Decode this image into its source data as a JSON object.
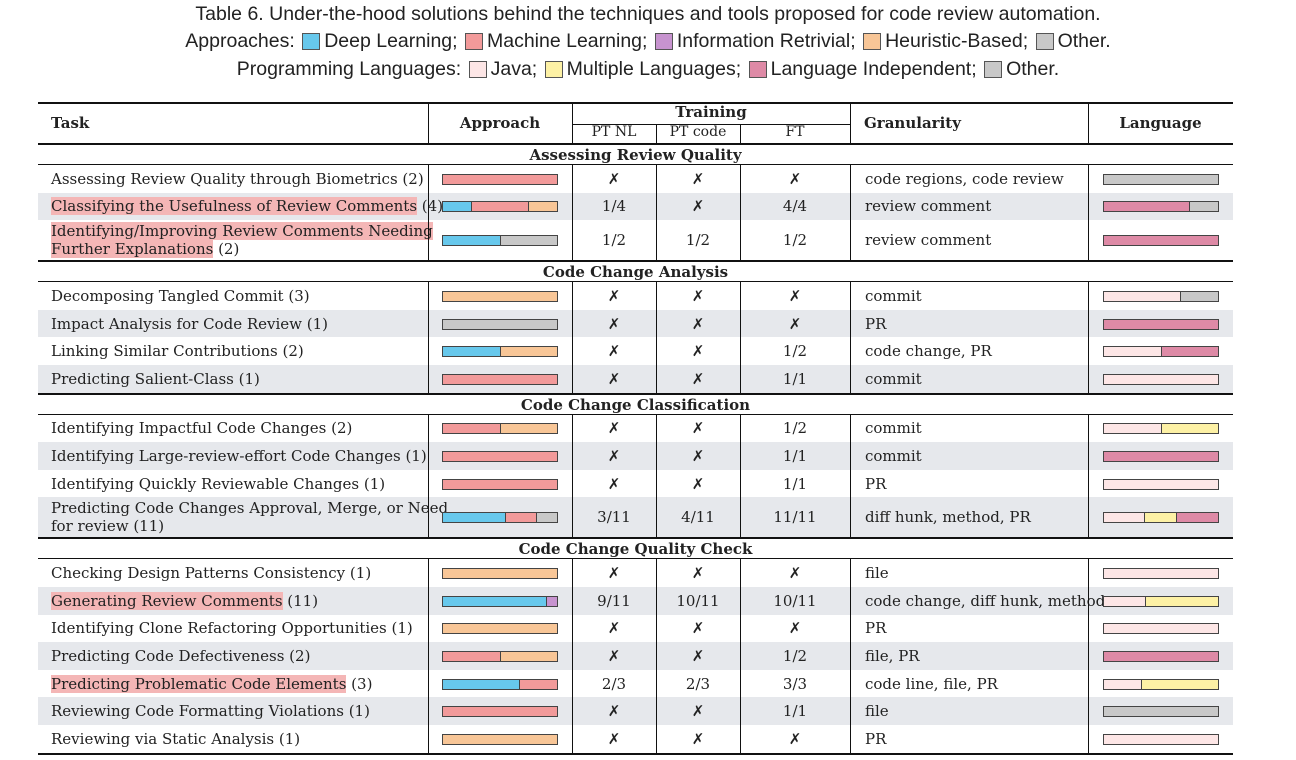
{
  "caption": {
    "line1": "Table 6.  Under-the-hood solutions behind the techniques and tools proposed for code review automation.",
    "approaches_label": "Approaches:",
    "approaches": [
      {
        "name": "Deep Learning;",
        "color": "#67c8ec"
      },
      {
        "name": "Machine Learning;",
        "color": "#f29a9a"
      },
      {
        "name": "Information Retrivial;",
        "color": "#c793cf"
      },
      {
        "name": "Heuristic-Based;",
        "color": "#f8c697"
      },
      {
        "name": "Other.",
        "color": "#c8c8c8"
      }
    ],
    "languages_label": "Programming Languages:",
    "languages": [
      {
        "name": "Java;",
        "color": "#fde6e6"
      },
      {
        "name": "Multiple Languages;",
        "color": "#fdf1a5"
      },
      {
        "name": "Language Independent;",
        "color": "#de8aa6"
      },
      {
        "name": "Other.",
        "color": "#c8c8c8"
      }
    ]
  },
  "colors": {
    "DL": "#67c8ec",
    "ML": "#f29a9a",
    "IR": "#c793cf",
    "HB": "#f8c697",
    "OT": "#c8c8c8",
    "JA": "#fde6e6",
    "MU": "#fdf1a5",
    "LI": "#de8aa6"
  },
  "headers": {
    "task": "Task",
    "approach": "Approach",
    "training": "Training",
    "pt_nl": "PT NL",
    "pt_code": "PT code",
    "ft": "FT",
    "granularity": "Granularity",
    "language": "Language"
  },
  "sections": [
    {
      "title": "Assessing Review Quality",
      "rows": [
        {
          "task": "Assessing Review Quality through Biometrics",
          "count": " (2)",
          "hl": false,
          "approach": [
            [
              "ML",
              1
            ]
          ],
          "pt_nl": "✗",
          "pt_code": "✗",
          "ft": "✗",
          "granularity": "code regions, code review",
          "language": [
            [
              "OT",
              1
            ]
          ]
        },
        {
          "task": "Classifying the Usefulness of Review Comments",
          "count": " (4)",
          "hl": true,
          "approach": [
            [
              "DL",
              0.25
            ],
            [
              "ML",
              0.5
            ],
            [
              "HB",
              0.25
            ]
          ],
          "pt_nl": "1/4",
          "pt_code": "✗",
          "ft": "4/4",
          "granularity": "review comment",
          "language": [
            [
              "LI",
              0.75
            ],
            [
              "OT",
              0.25
            ]
          ]
        },
        {
          "task": "Identifying/Improving Review Comments Needing",
          "task2": "Further Explanations",
          "count": " (2)",
          "hl": true,
          "approach": [
            [
              "DL",
              0.5
            ],
            [
              "OT",
              0.5
            ]
          ],
          "pt_nl": "1/2",
          "pt_code": "1/2",
          "ft": "1/2",
          "granularity": "review comment",
          "language": [
            [
              "LI",
              1
            ]
          ]
        }
      ]
    },
    {
      "title": "Code Change Analysis",
      "rows": [
        {
          "task": "Decomposing Tangled Commit",
          "count": " (3)",
          "hl": false,
          "approach": [
            [
              "HB",
              1
            ]
          ],
          "pt_nl": "✗",
          "pt_code": "✗",
          "ft": "✗",
          "granularity": "commit",
          "language": [
            [
              "JA",
              0.67
            ],
            [
              "OT",
              0.33
            ]
          ]
        },
        {
          "task": "Impact Analysis for Code Review",
          "count": " (1)",
          "hl": false,
          "approach": [
            [
              "OT",
              1
            ]
          ],
          "pt_nl": "✗",
          "pt_code": "✗",
          "ft": "✗",
          "granularity": "PR",
          "language": [
            [
              "LI",
              1
            ]
          ]
        },
        {
          "task": "Linking Similar Contributions",
          "count": " (2)",
          "hl": false,
          "approach": [
            [
              "DL",
              0.5
            ],
            [
              "HB",
              0.5
            ]
          ],
          "pt_nl": "✗",
          "pt_code": "✗",
          "ft": "1/2",
          "granularity": "code change, PR",
          "language": [
            [
              "JA",
              0.5
            ],
            [
              "LI",
              0.5
            ]
          ]
        },
        {
          "task": "Predicting Salient-Class",
          "count": " (1)",
          "hl": false,
          "approach": [
            [
              "ML",
              1
            ]
          ],
          "pt_nl": "✗",
          "pt_code": "✗",
          "ft": "1/1",
          "granularity": "commit",
          "language": [
            [
              "JA",
              1
            ]
          ]
        }
      ]
    },
    {
      "title": "Code Change Classification",
      "rows": [
        {
          "task": "Identifying Impactful Code Changes",
          "count": " (2)",
          "hl": false,
          "approach": [
            [
              "ML",
              0.5
            ],
            [
              "HB",
              0.5
            ]
          ],
          "pt_nl": "✗",
          "pt_code": "✗",
          "ft": "1/2",
          "granularity": "commit",
          "language": [
            [
              "JA",
              0.5
            ],
            [
              "MU",
              0.5
            ]
          ]
        },
        {
          "task": "Identifying Large-review-effort Code Changes",
          "count": " (1)",
          "hl": false,
          "approach": [
            [
              "ML",
              1
            ]
          ],
          "pt_nl": "✗",
          "pt_code": "✗",
          "ft": "1/1",
          "granularity": "commit",
          "language": [
            [
              "LI",
              1
            ]
          ]
        },
        {
          "task": "Identifying Quickly Reviewable Changes",
          "count": " (1)",
          "hl": false,
          "approach": [
            [
              "ML",
              1
            ]
          ],
          "pt_nl": "✗",
          "pt_code": "✗",
          "ft": "1/1",
          "granularity": "PR",
          "language": [
            [
              "JA",
              1
            ]
          ]
        },
        {
          "task": "Predicting Code Changes Approval, Merge, or Need",
          "task2": "for review",
          "count": " (11)",
          "hl": false,
          "approach": [
            [
              "DL",
              0.55
            ],
            [
              "ML",
              0.27
            ],
            [
              "OT",
              0.18
            ]
          ],
          "pt_nl": "3/11",
          "pt_code": "4/11",
          "ft": "11/11",
          "granularity": "diff hunk, method, PR",
          "language": [
            [
              "JA",
              0.36
            ],
            [
              "MU",
              0.27
            ],
            [
              "LI",
              0.37
            ]
          ]
        }
      ]
    },
    {
      "title": "Code Change Quality Check",
      "rows": [
        {
          "task": "Checking Design Patterns Consistency",
          "count": " (1)",
          "hl": false,
          "approach": [
            [
              "HB",
              1
            ]
          ],
          "pt_nl": "✗",
          "pt_code": "✗",
          "ft": "✗",
          "granularity": "file",
          "language": [
            [
              "JA",
              1
            ]
          ]
        },
        {
          "task": "Generating Review Comments",
          "count": " (11)",
          "hl": true,
          "approach": [
            [
              "DL",
              0.91
            ],
            [
              "IR",
              0.09
            ]
          ],
          "pt_nl": "9/11",
          "pt_code": "10/11",
          "ft": "10/11",
          "granularity": "code change, diff hunk, method",
          "language": [
            [
              "JA",
              0.36
            ],
            [
              "MU",
              0.64
            ]
          ]
        },
        {
          "task": "Identifying Clone Refactoring Opportunities",
          "count": " (1)",
          "hl": false,
          "approach": [
            [
              "HB",
              1
            ]
          ],
          "pt_nl": "✗",
          "pt_code": "✗",
          "ft": "✗",
          "granularity": "PR",
          "language": [
            [
              "JA",
              1
            ]
          ]
        },
        {
          "task": "Predicting Code Defectiveness",
          "count": " (2)",
          "hl": false,
          "approach": [
            [
              "ML",
              0.5
            ],
            [
              "HB",
              0.5
            ]
          ],
          "pt_nl": "✗",
          "pt_code": "✗",
          "ft": "1/2",
          "granularity": "file, PR",
          "language": [
            [
              "LI",
              1
            ]
          ]
        },
        {
          "task": "Predicting Problematic Code Elements",
          "count": " (3)",
          "hl": true,
          "approach": [
            [
              "DL",
              0.67
            ],
            [
              "ML",
              0.33
            ]
          ],
          "pt_nl": "2/3",
          "pt_code": "2/3",
          "ft": "3/3",
          "granularity": "code line, file, PR",
          "language": [
            [
              "JA",
              0.33
            ],
            [
              "MU",
              0.67
            ]
          ]
        },
        {
          "task": "Reviewing Code Formatting Violations",
          "count": " (1)",
          "hl": false,
          "approach": [
            [
              "ML",
              1
            ]
          ],
          "pt_nl": "✗",
          "pt_code": "✗",
          "ft": "1/1",
          "granularity": "file",
          "language": [
            [
              "OT",
              1
            ]
          ]
        },
        {
          "task": "Reviewing via Static Analysis",
          "count": " (1)",
          "hl": false,
          "approach": [
            [
              "HB",
              1
            ]
          ],
          "pt_nl": "✗",
          "pt_code": "✗",
          "ft": "✗",
          "granularity": "PR",
          "language": [
            [
              "JA",
              1
            ]
          ]
        }
      ]
    }
  ]
}
